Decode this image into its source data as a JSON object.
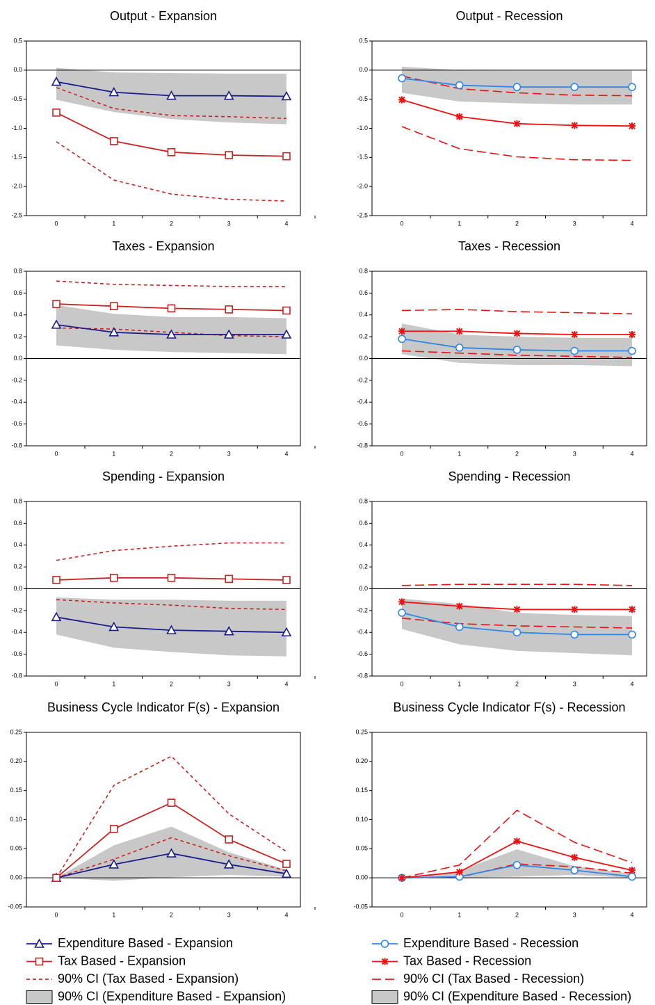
{
  "chart_data": [
    {
      "type": "line",
      "title": "Output - Expansion",
      "categories": [
        "0",
        "1",
        "2",
        "3",
        "4"
      ],
      "ylim": [
        -2.5,
        0.5
      ],
      "yticks": [
        0.5,
        {
          "value": 0,
          "label": "0.0"
        },
        -0.5,
        {
          "value": -1,
          "label": "-1.0"
        },
        -1.5,
        {
          "value": -2,
          "label": "-2.0"
        },
        -2.5
      ],
      "series": [
        {
          "color": "#1a1a8c",
          "style": "solid",
          "marker": "triangle",
          "values": [
            -0.2,
            -0.38,
            -0.44,
            -0.44,
            -0.45
          ]
        },
        {
          "color": "#cc2222",
          "style": "solid",
          "marker": "square",
          "values": [
            -0.73,
            -1.22,
            -1.41,
            -1.46,
            -1.48
          ]
        },
        {
          "color": "#cc2222",
          "style": "dash-short",
          "lower": [
            -1.23,
            -1.89,
            -2.13,
            -2.22,
            -2.25
          ],
          "upper": [
            -0.3,
            -0.66,
            -0.78,
            -0.8,
            -0.83
          ]
        },
        {
          "color": "#c8c8c8",
          "style": "band",
          "lower": [
            -0.51,
            -0.72,
            -0.84,
            -0.9,
            -0.93
          ],
          "upper": [
            0.04,
            -0.04,
            -0.05,
            -0.06,
            -0.06
          ]
        }
      ]
    },
    {
      "type": "line",
      "title": "Output - Recession",
      "categories": [
        "0",
        "1",
        "2",
        "3",
        "4"
      ],
      "ylim": [
        -2.5,
        0.5
      ],
      "yticks": [
        0.5,
        {
          "value": 0,
          "label": "0.0"
        },
        -0.5,
        {
          "value": -1,
          "label": "-1.0"
        },
        -1.5,
        {
          "value": -2,
          "label": "-2.0"
        },
        -2.5
      ],
      "series": [
        {
          "color": "#2f86e8",
          "style": "solid",
          "marker": "circle",
          "values": [
            -0.14,
            -0.26,
            -0.29,
            -0.29,
            -0.29
          ]
        },
        {
          "color": "#ee1111",
          "style": "solid",
          "marker": "asterisk",
          "values": [
            -0.51,
            -0.8,
            -0.92,
            -0.95,
            -0.96
          ]
        },
        {
          "color": "#ee1111",
          "style": "dash-long",
          "lower": [
            -0.97,
            -1.35,
            -1.49,
            -1.54,
            -1.55
          ],
          "upper": [
            -0.1,
            -0.32,
            -0.39,
            -0.43,
            -0.44
          ]
        },
        {
          "color": "#c8c8c8",
          "style": "band",
          "lower": [
            -0.39,
            -0.54,
            -0.57,
            -0.59,
            -0.59
          ],
          "upper": [
            0.06,
            0,
            -0.01,
            -0.01,
            -0.01
          ]
        }
      ]
    },
    {
      "type": "line",
      "title": "Taxes - Expansion",
      "categories": [
        "0",
        "1",
        "2",
        "3",
        "4"
      ],
      "ylim": [
        -0.8,
        0.8
      ],
      "yticks": [
        0.8,
        0.6,
        0.4,
        0.2,
        {
          "value": 0,
          "label": "0.0"
        },
        -0.2,
        -0.4,
        -0.6,
        -0.8
      ],
      "series": [
        {
          "color": "#1a1a8c",
          "style": "solid",
          "marker": "triangle",
          "values": [
            0.31,
            0.24,
            0.22,
            0.22,
            0.22
          ]
        },
        {
          "color": "#cc2222",
          "style": "solid",
          "marker": "square",
          "values": [
            0.5,
            0.48,
            0.46,
            0.45,
            0.44
          ]
        },
        {
          "color": "#cc2222",
          "style": "dash-short",
          "lower": [
            0.28,
            0.27,
            0.24,
            0.21,
            0.2
          ],
          "upper": [
            0.71,
            0.68,
            0.67,
            0.66,
            0.66
          ]
        },
        {
          "color": "#c8c8c8",
          "style": "band",
          "lower": [
            0.12,
            0.08,
            0.06,
            0.05,
            0.04
          ],
          "upper": [
            0.49,
            0.41,
            0.38,
            0.38,
            0.37
          ]
        }
      ]
    },
    {
      "type": "line",
      "title": "Taxes - Recession",
      "categories": [
        "0",
        "1",
        "2",
        "3",
        "4"
      ],
      "ylim": [
        -0.8,
        0.8
      ],
      "yticks": [
        0.8,
        0.6,
        0.4,
        0.2,
        {
          "value": 0,
          "label": "0.0"
        },
        -0.2,
        -0.4,
        -0.6,
        -0.8
      ],
      "series": [
        {
          "color": "#2f86e8",
          "style": "solid",
          "marker": "circle",
          "values": [
            0.18,
            0.1,
            0.08,
            0.07,
            0.07
          ]
        },
        {
          "color": "#ee1111",
          "style": "solid",
          "marker": "asterisk",
          "values": [
            0.25,
            0.25,
            0.23,
            0.22,
            0.22
          ]
        },
        {
          "color": "#ee1111",
          "style": "dash-long",
          "lower": [
            0.07,
            0.05,
            0.03,
            0.02,
            0.01
          ],
          "upper": [
            0.44,
            0.45,
            0.43,
            0.42,
            0.41
          ]
        },
        {
          "color": "#c8c8c8",
          "style": "band",
          "lower": [
            0.04,
            -0.04,
            -0.06,
            -0.06,
            -0.07
          ],
          "upper": [
            0.32,
            0.22,
            0.2,
            0.19,
            0.19
          ]
        }
      ]
    },
    {
      "type": "line",
      "title": "Spending - Expansion",
      "categories": [
        "0",
        "1",
        "2",
        "3",
        "4"
      ],
      "ylim": [
        -0.8,
        0.8
      ],
      "yticks": [
        0.8,
        0.6,
        0.4,
        0.2,
        {
          "value": 0,
          "label": "0.0"
        },
        -0.2,
        -0.4,
        -0.6,
        -0.8
      ],
      "series": [
        {
          "color": "#1a1a8c",
          "style": "solid",
          "marker": "triangle",
          "values": [
            -0.26,
            -0.35,
            -0.38,
            -0.39,
            -0.4
          ]
        },
        {
          "color": "#cc2222",
          "style": "solid",
          "marker": "square",
          "values": [
            0.08,
            0.1,
            0.1,
            0.09,
            0.08
          ]
        },
        {
          "color": "#cc2222",
          "style": "dash-short",
          "lower": [
            -0.1,
            -0.13,
            -0.15,
            -0.18,
            -0.19
          ],
          "upper": [
            0.26,
            0.35,
            0.39,
            0.42,
            0.42
          ]
        },
        {
          "color": "#c8c8c8",
          "style": "band",
          "lower": [
            -0.42,
            -0.54,
            -0.58,
            -0.61,
            -0.62
          ],
          "upper": [
            -0.08,
            -0.1,
            -0.1,
            -0.11,
            -0.11
          ]
        }
      ]
    },
    {
      "type": "line",
      "title": "Spending - Recession",
      "categories": [
        "0",
        "1",
        "2",
        "3",
        "4"
      ],
      "ylim": [
        -0.8,
        0.8
      ],
      "yticks": [
        0.8,
        0.6,
        0.4,
        0.2,
        {
          "value": 0,
          "label": "0.0"
        },
        -0.2,
        -0.4,
        -0.6,
        -0.8
      ],
      "series": [
        {
          "color": "#2f86e8",
          "style": "solid",
          "marker": "circle",
          "values": [
            -0.22,
            -0.35,
            -0.4,
            -0.42,
            -0.42
          ]
        },
        {
          "color": "#ee1111",
          "style": "solid",
          "marker": "asterisk",
          "values": [
            -0.12,
            -0.16,
            -0.19,
            -0.19,
            -0.19
          ]
        },
        {
          "color": "#ee1111",
          "style": "dash-long",
          "lower": [
            -0.27,
            -0.32,
            -0.34,
            -0.35,
            -0.36
          ],
          "upper": [
            0.03,
            0.04,
            0.04,
            0.04,
            0.03
          ]
        },
        {
          "color": "#c8c8c8",
          "style": "band",
          "lower": [
            -0.37,
            -0.51,
            -0.57,
            -0.59,
            -0.61
          ],
          "upper": [
            -0.09,
            -0.14,
            -0.22,
            -0.24,
            -0.25
          ]
        }
      ]
    },
    {
      "type": "line",
      "title": "Business Cycle Indicator F(s) - Expansion",
      "categories": [
        "0",
        "1",
        "2",
        "3",
        "4"
      ],
      "ylim": [
        -0.05,
        0.25
      ],
      "yticks": [
        0.25,
        {
          "value": 0.2,
          "label": "0.20"
        },
        0.15,
        {
          "value": 0.1,
          "label": "0.10"
        },
        0.05,
        {
          "value": 0,
          "label": "0.00"
        },
        -0.05
      ],
      "series": [
        {
          "name": "Expenditure Based - Expansion",
          "color": "#1a1a8c",
          "style": "solid",
          "marker": "triangle",
          "values": [
            0,
            0.023,
            0.042,
            0.023,
            0.007
          ]
        },
        {
          "name": "Tax Based - Expansion",
          "color": "#cc2222",
          "style": "solid",
          "marker": "square",
          "values": [
            0,
            0.084,
            0.129,
            0.066,
            0.024
          ]
        },
        {
          "name": "90% CI (Tax Based - Expansion)",
          "color": "#cc2222",
          "style": "dash-short",
          "lower": [
            0,
            0.032,
            0.069,
            0.038,
            0.012
          ],
          "upper": [
            0,
            0.159,
            0.209,
            0.11,
            0.045
          ]
        },
        {
          "name": "90% CI (Expenditure Based - Expansion)",
          "color": "#c8c8c8",
          "style": "band",
          "lower": [
            0,
            -0.005,
            0.001,
            0.005,
            0.002
          ],
          "upper": [
            0,
            0.056,
            0.088,
            0.044,
            0.014
          ]
        }
      ]
    },
    {
      "type": "line",
      "title": "Business Cycle Indicator F(s) - Recession",
      "categories": [
        "0",
        "1",
        "2",
        "3",
        "4"
      ],
      "ylim": [
        -0.05,
        0.25
      ],
      "yticks": [
        0.25,
        {
          "value": 0.2,
          "label": "0.20"
        },
        0.15,
        {
          "value": 0.1,
          "label": "0.10"
        },
        0.05,
        {
          "value": 0,
          "label": "0.00"
        },
        -0.05
      ],
      "series": [
        {
          "name": "Expenditure Based - Recession",
          "color": "#2f86e8",
          "style": "solid",
          "marker": "circle",
          "values": [
            0,
            0.002,
            0.022,
            0.013,
            0.002
          ]
        },
        {
          "name": "Tax Based - Recession",
          "color": "#ee1111",
          "style": "solid",
          "marker": "asterisk",
          "values": [
            0,
            0.01,
            0.063,
            0.035,
            0.013
          ]
        },
        {
          "name": "90% CI (Tax Based - Recession)",
          "color": "#ee1111",
          "style": "dash-long",
          "lower": [
            0,
            0.001,
            0.024,
            0.019,
            0.008
          ],
          "upper": [
            0,
            0.022,
            0.116,
            0.061,
            0.026
          ]
        },
        {
          "name": "90% CI (Expenditure Based - Recession)",
          "color": "#c8c8c8",
          "style": "band",
          "lower": [
            0,
            0,
            0.002,
            0.005,
            0
          ],
          "upper": [
            0,
            0.012,
            0.049,
            0.02,
            0.007
          ]
        }
      ]
    }
  ]
}
